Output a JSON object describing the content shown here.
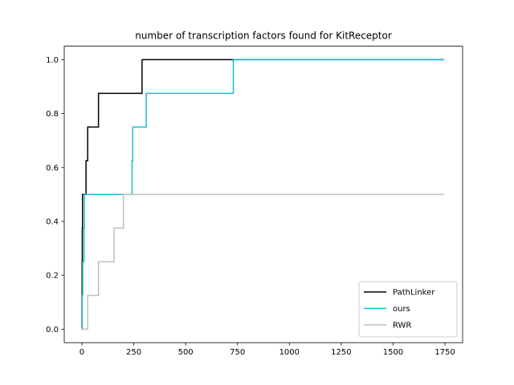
{
  "chart_data": {
    "type": "line",
    "title": "number of transcription factors found for KitReceptor",
    "xlabel": "",
    "ylabel": "",
    "xlim": [
      -85,
      1835
    ],
    "ylim": [
      -0.05,
      1.05
    ],
    "xticks": [
      0,
      250,
      500,
      750,
      1000,
      1250,
      1500,
      1750
    ],
    "xtick_labels": [
      "0",
      "250",
      "500",
      "750",
      "1000",
      "1250",
      "1500",
      "1750"
    ],
    "yticks": [
      0.0,
      0.2,
      0.4,
      0.6,
      0.8,
      1.0
    ],
    "ytick_labels": [
      "0.0",
      "0.2",
      "0.4",
      "0.6",
      "0.8",
      "1.0"
    ],
    "grid": false,
    "legend_position": "lower-right",
    "series": [
      {
        "name": "PathLinker",
        "color": "#000000",
        "step": true,
        "x": [
          0,
          1,
          2,
          3,
          18,
          20,
          28,
          80,
          290,
          1745
        ],
        "y": [
          0.0,
          0.25,
          0.375,
          0.5,
          0.5,
          0.625,
          0.75,
          0.875,
          1.0,
          1.0
        ]
      },
      {
        "name": "ours",
        "color": "#17becf",
        "step": true,
        "x": [
          0,
          2,
          4,
          10,
          12,
          242,
          245,
          310,
          730,
          1745
        ],
        "y": [
          0.0,
          0.125,
          0.25,
          0.375,
          0.5,
          0.625,
          0.75,
          0.875,
          1.0,
          1.0
        ]
      },
      {
        "name": "RWR",
        "color": "#bfbfbf",
        "step": true,
        "x": [
          0,
          28,
          80,
          155,
          200,
          1745
        ],
        "y": [
          0.0,
          0.125,
          0.25,
          0.375,
          0.5,
          0.5
        ]
      }
    ]
  }
}
